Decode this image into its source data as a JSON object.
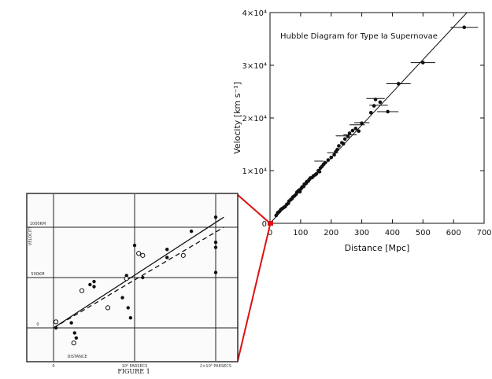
{
  "chart_data": [
    {
      "type": "scatter",
      "title": "Hubble Diagram for Type Ia Supernovae",
      "xlabel": "Distance [Mpc]",
      "ylabel": "Velocity [km s⁻¹]",
      "xlim": [
        0,
        700
      ],
      "ylim": [
        0,
        40000
      ],
      "grid": false,
      "x_ticks": [
        {
          "v": 0,
          "label": "0"
        },
        {
          "v": 100,
          "label": "100"
        },
        {
          "v": 200,
          "label": "200"
        },
        {
          "v": 300,
          "label": "300"
        },
        {
          "v": 400,
          "label": "400"
        },
        {
          "v": 500,
          "label": "500"
        },
        {
          "v": 600,
          "label": "600"
        },
        {
          "v": 700,
          "label": "700"
        }
      ],
      "y_ticks": [
        {
          "v": 0,
          "label": "0"
        },
        {
          "v": 10000,
          "label": "1×10⁴"
        },
        {
          "v": 20000,
          "label": "2×10⁴"
        },
        {
          "v": 30000,
          "label": "3×10⁴"
        },
        {
          "v": 40000,
          "label": "4×10⁴"
        }
      ],
      "fit_line": [
        [
          0,
          0
        ],
        [
          660,
          41000
        ]
      ],
      "points": [
        {
          "x": 20,
          "y": 1500
        },
        {
          "x": 25,
          "y": 2000
        },
        {
          "x": 30,
          "y": 2200
        },
        {
          "x": 35,
          "y": 2600
        },
        {
          "x": 40,
          "y": 2800
        },
        {
          "x": 45,
          "y": 3000
        },
        {
          "x": 50,
          "y": 3200
        },
        {
          "x": 55,
          "y": 3600
        },
        {
          "x": 60,
          "y": 3800
        },
        {
          "x": 62,
          "y": 4200
        },
        {
          "x": 68,
          "y": 4500
        },
        {
          "x": 72,
          "y": 4700
        },
        {
          "x": 75,
          "y": 5000
        },
        {
          "x": 80,
          "y": 5200
        },
        {
          "x": 85,
          "y": 5500
        },
        {
          "x": 88,
          "y": 5900
        },
        {
          "x": 92,
          "y": 6100
        },
        {
          "x": 95,
          "y": 6300
        },
        {
          "x": 98,
          "y": 6000
        },
        {
          "x": 102,
          "y": 6600
        },
        {
          "x": 105,
          "y": 6900
        },
        {
          "x": 110,
          "y": 7000
        },
        {
          "x": 112,
          "y": 7400
        },
        {
          "x": 118,
          "y": 7600
        },
        {
          "x": 120,
          "y": 7900
        },
        {
          "x": 125,
          "y": 8000
        },
        {
          "x": 128,
          "y": 8300
        },
        {
          "x": 132,
          "y": 8600
        },
        {
          "x": 138,
          "y": 8700
        },
        {
          "x": 142,
          "y": 9000
        },
        {
          "x": 148,
          "y": 9200
        },
        {
          "x": 152,
          "y": 9400
        },
        {
          "x": 158,
          "y": 10000
        },
        {
          "x": 162,
          "y": 9800
        },
        {
          "x": 165,
          "y": 10500
        },
        {
          "x": 170,
          "y": 10800
        },
        {
          "x": 175,
          "y": 11200
        },
        {
          "x": 180,
          "y": 11500
        },
        {
          "x": 190,
          "y": 12000
        },
        {
          "x": 200,
          "y": 12500
        },
        {
          "x": 210,
          "y": 13000
        },
        {
          "x": 215,
          "y": 13600
        },
        {
          "x": 220,
          "y": 14000
        },
        {
          "x": 225,
          "y": 14700
        },
        {
          "x": 235,
          "y": 15300
        },
        {
          "x": 240,
          "y": 15100
        },
        {
          "x": 245,
          "y": 16000
        },
        {
          "x": 255,
          "y": 16500
        },
        {
          "x": 260,
          "y": 17100
        },
        {
          "x": 270,
          "y": 17600
        },
        {
          "x": 280,
          "y": 18000
        },
        {
          "x": 290,
          "y": 17500
        },
        {
          "x": 300,
          "y": 19000
        },
        {
          "x": 330,
          "y": 21000
        },
        {
          "x": 340,
          "y": 22300
        },
        {
          "x": 345,
          "y": 23500
        },
        {
          "x": 360,
          "y": 23000
        },
        {
          "x": 385,
          "y": 21200
        },
        {
          "x": 420,
          "y": 26500
        },
        {
          "x": 500,
          "y": 30500
        },
        {
          "x": 635,
          "y": 37200
        }
      ],
      "x_error_points": [
        {
          "x": 160,
          "y": 11800,
          "err": 15
        },
        {
          "x": 205,
          "y": 13400,
          "err": 18
        },
        {
          "x": 235,
          "y": 16600,
          "err": 20
        },
        {
          "x": 262,
          "y": 16800,
          "err": 22
        },
        {
          "x": 285,
          "y": 18700,
          "err": 25
        },
        {
          "x": 300,
          "y": 19100,
          "err": 25
        },
        {
          "x": 345,
          "y": 23700,
          "err": 30
        },
        {
          "x": 355,
          "y": 22400,
          "err": 30
        },
        {
          "x": 385,
          "y": 21200,
          "err": 35
        },
        {
          "x": 420,
          "y": 26500,
          "err": 40
        },
        {
          "x": 500,
          "y": 30500,
          "err": 40
        },
        {
          "x": 635,
          "y": 37200,
          "err": 45
        }
      ]
    },
    {
      "type": "scatter",
      "title": "",
      "caption": "FIGURE 1",
      "xlabel": "DISTANCE",
      "ylabel": "VELOCITY",
      "xlim": [
        0,
        2.3
      ],
      "ylim": [
        -800,
        2000
      ],
      "grid": true,
      "x_ticks": [
        {
          "v": 0,
          "label": "0"
        },
        {
          "v": 1,
          "label": "10⁶ PARSECS"
        },
        {
          "v": 2,
          "label": "2×10⁶ PARSECS"
        }
      ],
      "y_ticks": [
        {
          "v": 0,
          "label": "0"
        },
        {
          "v": 500,
          "label": "500KM"
        },
        {
          "v": 1000,
          "label": "1000KM"
        }
      ],
      "solid_line": [
        [
          0,
          0
        ],
        [
          2.1,
          1100
        ]
      ],
      "dashed_line": [
        [
          0,
          0
        ],
        [
          2.1,
          1000
        ]
      ],
      "filled_points": [
        {
          "x": 0.03,
          "y": 0
        },
        {
          "x": 0.22,
          "y": 50
        },
        {
          "x": 0.26,
          "y": -50
        },
        {
          "x": 0.28,
          "y": -100
        },
        {
          "x": 0.45,
          "y": 430
        },
        {
          "x": 0.5,
          "y": 460
        },
        {
          "x": 0.5,
          "y": 410
        },
        {
          "x": 0.85,
          "y": 300
        },
        {
          "x": 0.9,
          "y": 520
        },
        {
          "x": 0.92,
          "y": 200
        },
        {
          "x": 0.95,
          "y": 100
        },
        {
          "x": 1.0,
          "y": 820
        },
        {
          "x": 1.1,
          "y": 500
        },
        {
          "x": 1.4,
          "y": 780
        },
        {
          "x": 1.4,
          "y": 700
        },
        {
          "x": 1.7,
          "y": 960
        },
        {
          "x": 2.0,
          "y": 1100
        },
        {
          "x": 2.0,
          "y": 850
        },
        {
          "x": 2.0,
          "y": 800
        },
        {
          "x": 2.0,
          "y": 550
        }
      ],
      "open_points": [
        {
          "x": 0.03,
          "y": 60
        },
        {
          "x": 0.25,
          "y": -150
        },
        {
          "x": 0.35,
          "y": 370
        },
        {
          "x": 0.67,
          "y": 200
        },
        {
          "x": 0.9,
          "y": 490
        },
        {
          "x": 1.05,
          "y": 740
        },
        {
          "x": 1.1,
          "y": 720
        },
        {
          "x": 1.6,
          "y": 720
        }
      ]
    }
  ]
}
